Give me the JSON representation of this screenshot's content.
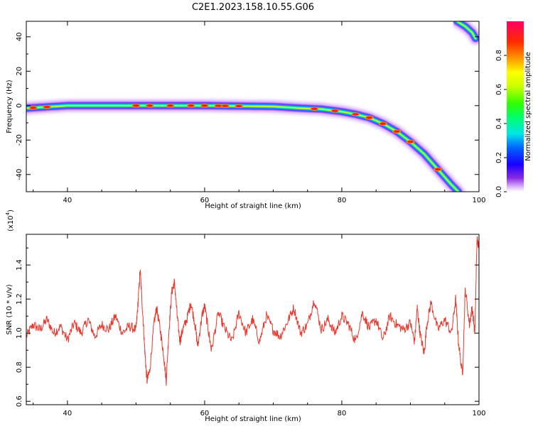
{
  "title": "C2E1.2023.158.10.55.G06",
  "chart_data": [
    {
      "type": "heatmap",
      "xlabel": "Height of straight line (km)",
      "ylabel": "Frequency (Hz)",
      "xlim": [
        34,
        100
      ],
      "ylim": [
        -50,
        49
      ],
      "xticks": [
        40,
        60,
        80,
        100
      ],
      "yticks": [
        40,
        20,
        0,
        -20,
        -40
      ],
      "colorbar": {
        "label": "Normalized spectral amplitude",
        "range": [
          0,
          1
        ],
        "ticks": [
          "0.0",
          "0.2",
          "0.4",
          "0.6",
          "0.8"
        ]
      },
      "ridge": [
        {
          "x": 34.0,
          "y": -1.5
        },
        {
          "x": 40,
          "y": 0
        },
        {
          "x": 50,
          "y": 0
        },
        {
          "x": 60,
          "y": 0
        },
        {
          "x": 70,
          "y": -0.5
        },
        {
          "x": 74,
          "y": -1.5
        },
        {
          "x": 77,
          "y": -2
        },
        {
          "x": 80,
          "y": -3.5
        },
        {
          "x": 82,
          "y": -5
        },
        {
          "x": 84,
          "y": -7
        },
        {
          "x": 86,
          "y": -10.5
        },
        {
          "x": 88,
          "y": -15
        },
        {
          "x": 90,
          "y": -21
        },
        {
          "x": 92,
          "y": -28
        },
        {
          "x": 94,
          "y": -37
        },
        {
          "x": 96,
          "y": -46
        },
        {
          "x": 97,
          "y": -50
        }
      ],
      "ridge_upper": [
        {
          "x": 96.8,
          "y": 49
        },
        {
          "x": 98,
          "y": 46
        },
        {
          "x": 99.0,
          "y": 42.5
        },
        {
          "x": 99.5,
          "y": 39
        }
      ],
      "peaks_x": [
        35,
        37,
        50,
        52,
        55,
        58,
        60,
        62,
        63,
        65,
        76,
        79,
        82,
        84,
        86,
        88,
        90,
        94
      ]
    },
    {
      "type": "line",
      "xlabel": "Height of straight line (km)",
      "ylabel": "SNR (10 * v/v)",
      "yscale_label": "(x10",
      "yscale_exp": "4",
      "yscale_close": ")",
      "xlim": [
        34,
        100
      ],
      "ylim": [
        0.58,
        1.58
      ],
      "xticks": [
        40,
        60,
        80,
        100
      ],
      "yticks": [
        "0.6",
        "0.8",
        "1.0",
        "1.2",
        "1.4"
      ],
      "series": [
        {
          "color": "#e8392f",
          "x": [
            34,
            35,
            36,
            37,
            38,
            39,
            40,
            41,
            42,
            43,
            44,
            45,
            46,
            47,
            48,
            49,
            50,
            50.3,
            50.6,
            51,
            51.3,
            51.6,
            52,
            52.6,
            53,
            53.6,
            54,
            54.4,
            54.8,
            55.2,
            55.6,
            56,
            56.4,
            56.8,
            57.4,
            58,
            58.6,
            59,
            59.6,
            60,
            60.6,
            61,
            62,
            63,
            64,
            65,
            66,
            67,
            68,
            69,
            70,
            71,
            72,
            73,
            74,
            75,
            76,
            77,
            78,
            79,
            80,
            81,
            82,
            83,
            84,
            85,
            86,
            87,
            88,
            89,
            90,
            90.6,
            91,
            91.4,
            92,
            92.4,
            93,
            94,
            95,
            96,
            96.6,
            97,
            97.6,
            98,
            98.6,
            99,
            99.4,
            99.7,
            100
          ],
          "y": [
            0.98,
            1.05,
            1.02,
            1.08,
            1.0,
            1.04,
            0.96,
            1.06,
            1.0,
            1.08,
            0.98,
            1.05,
            1.02,
            1.1,
            1.0,
            1.04,
            1.02,
            1.18,
            1.37,
            1.1,
            0.88,
            0.72,
            0.78,
            1.05,
            1.15,
            1.0,
            0.88,
            0.72,
            1.02,
            1.24,
            1.3,
            1.1,
            0.95,
            1.02,
            1.08,
            1.18,
            1.05,
            0.92,
            1.1,
            1.16,
            1.0,
            0.9,
            1.12,
            1.02,
            0.95,
            1.12,
            1.0,
            1.08,
            0.95,
            1.1,
            1.02,
            0.98,
            1.06,
            1.15,
            1.0,
            1.05,
            1.2,
            1.02,
            1.08,
            1.0,
            1.1,
            1.05,
            0.95,
            1.12,
            1.03,
            1.08,
            0.96,
            1.1,
            1.05,
            1.02,
            1.06,
            0.95,
            1.15,
            1.0,
            0.88,
            1.05,
            1.18,
            1.02,
            1.08,
            1.0,
            1.2,
            0.95,
            0.75,
            1.26,
            1.05,
            1.15,
            1.0,
            1.55,
            1.5
          ]
        }
      ]
    }
  ]
}
